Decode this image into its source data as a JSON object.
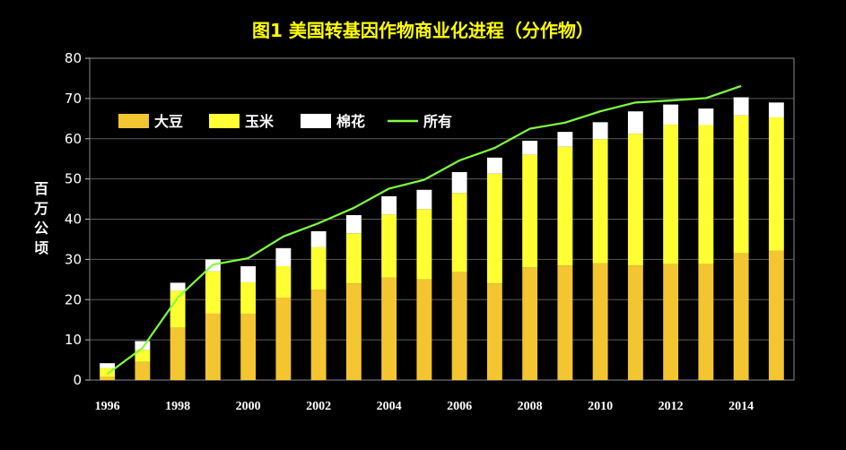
{
  "chart_data": {
    "type": "bar",
    "title": "图1 美国转基因作物商业化进程（分作物）",
    "xlabel": "",
    "ylabel": "百万公顷",
    "ylim": [
      0,
      80
    ],
    "yticks": [
      0,
      10,
      20,
      30,
      40,
      50,
      60,
      70,
      80
    ],
    "x": [
      1996,
      1997,
      1998,
      1999,
      2000,
      2001,
      2002,
      2003,
      2004,
      2005,
      2006,
      2007,
      2008,
      2009,
      2010,
      2011,
      2012,
      2013,
      2014,
      2015
    ],
    "xtick_labels": [
      "1996",
      "1998",
      "2000",
      "2002",
      "2004",
      "2006",
      "2008",
      "2010",
      "2012",
      "2014"
    ],
    "stacked": true,
    "grid": true,
    "legend_position": "top-left",
    "series": [
      {
        "name": "大豆",
        "kind": "bar",
        "color": "#f2c531",
        "values": [
          0.8,
          4.5,
          13.0,
          16.5,
          16.5,
          20.5,
          22.5,
          24.0,
          25.5,
          25.0,
          26.8,
          24.0,
          28.0,
          28.5,
          29.0,
          28.5,
          28.8,
          28.8,
          31.5,
          32.2
        ]
      },
      {
        "name": "玉米",
        "kind": "bar",
        "color": "#ffff33",
        "values": [
          2.2,
          3.0,
          9.2,
          10.5,
          7.8,
          7.8,
          10.5,
          12.5,
          15.7,
          17.5,
          19.7,
          27.3,
          28.0,
          29.5,
          30.9,
          32.7,
          34.7,
          34.6,
          34.3,
          33.1
        ]
      },
      {
        "name": "棉花",
        "kind": "bar",
        "color": "#ffffff",
        "values": [
          1.2,
          2.2,
          2.0,
          3.0,
          4.0,
          4.5,
          4.0,
          4.5,
          4.5,
          4.8,
          5.2,
          4.0,
          3.5,
          3.7,
          4.2,
          5.6,
          5.0,
          4.1,
          4.5,
          3.7
        ]
      },
      {
        "name": "所有",
        "kind": "line",
        "color": "#80ff40",
        "values": [
          1.5,
          8.0,
          20.5,
          28.7,
          30.3,
          35.7,
          39.0,
          42.8,
          47.6,
          49.8,
          54.6,
          57.7,
          62.5,
          64.0,
          66.8,
          69.0,
          69.5,
          70.1,
          73.1,
          null
        ]
      }
    ]
  }
}
